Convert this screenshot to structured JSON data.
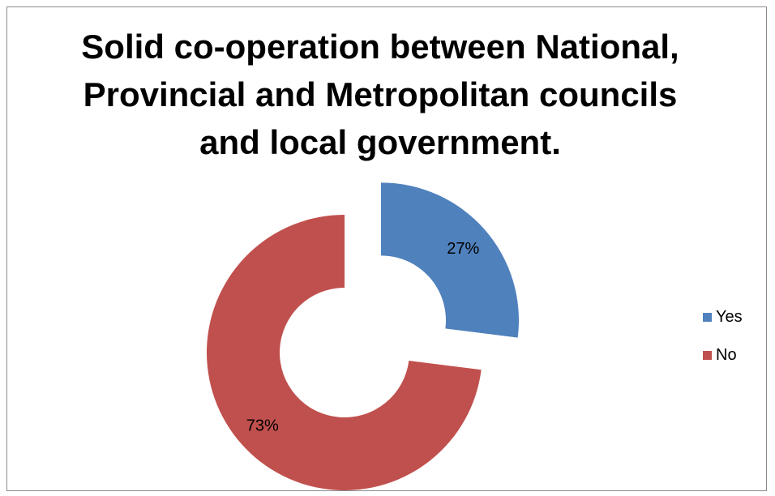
{
  "chart_data": {
    "type": "donut",
    "title_lines": [
      "Solid co-operation between National,",
      "Provincial and Metropolitan councils",
      "and local government."
    ],
    "series": [
      {
        "name": "Yes",
        "value": 27,
        "label": "27%",
        "color": "#4f81bd",
        "exploded": true
      },
      {
        "name": "No",
        "value": 73,
        "label": "73%",
        "color": "#c0504d",
        "exploded": false
      }
    ],
    "legend_position": "right"
  }
}
